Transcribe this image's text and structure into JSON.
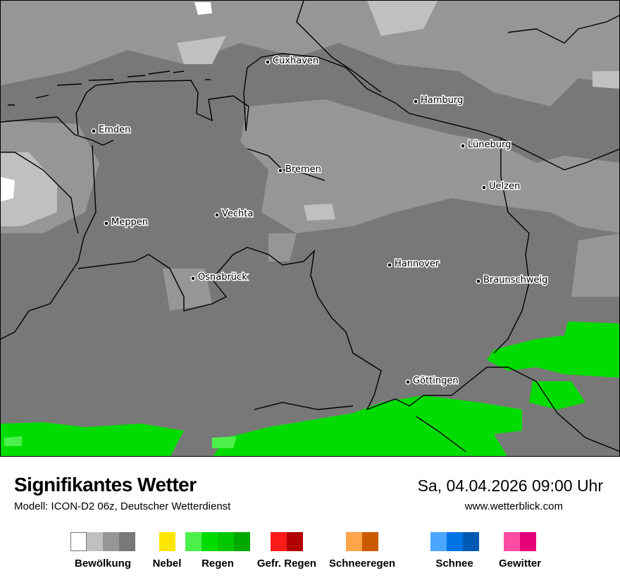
{
  "map": {
    "cities": [
      "Cuxhaven",
      "Hamburg",
      "Emden",
      "Lüneburg",
      "Bremen",
      "Uelzen",
      "Vechta",
      "Meppen",
      "Hannover",
      "Osnabrück",
      "Braunschweig",
      "Göttingen"
    ]
  },
  "footer": {
    "title": "Signifikantes Wetter",
    "subtitle": "Modell: ICON-D2 06z, Deutscher Wetterdienst",
    "datetime": "Sa, 04.04.2026 09:00 Uhr",
    "website": "www.wetterblick.com"
  },
  "legend": [
    {
      "label": "Bewölkung",
      "colors": [
        "#ffffff",
        "#c0c0c0",
        "#969696",
        "#787878"
      ]
    },
    {
      "label": "Nebel",
      "colors": [
        "#ffe600"
      ]
    },
    {
      "label": "Regen",
      "colors": [
        "#4cf04c",
        "#00dc00",
        "#00c800",
        "#00a800"
      ]
    },
    {
      "label": "Gefr. Regen",
      "colors": [
        "#ff1a1a",
        "#b00000"
      ]
    },
    {
      "label": "Schneeregen",
      "colors": [
        "#ffa54c",
        "#cc5a00"
      ]
    },
    {
      "label": "Schnee",
      "colors": [
        "#4ca5ff",
        "#0073e6",
        "#005ab4"
      ]
    },
    {
      "label": "Gewitter",
      "colors": [
        "#ff4ca5",
        "#e6007a"
      ]
    }
  ]
}
